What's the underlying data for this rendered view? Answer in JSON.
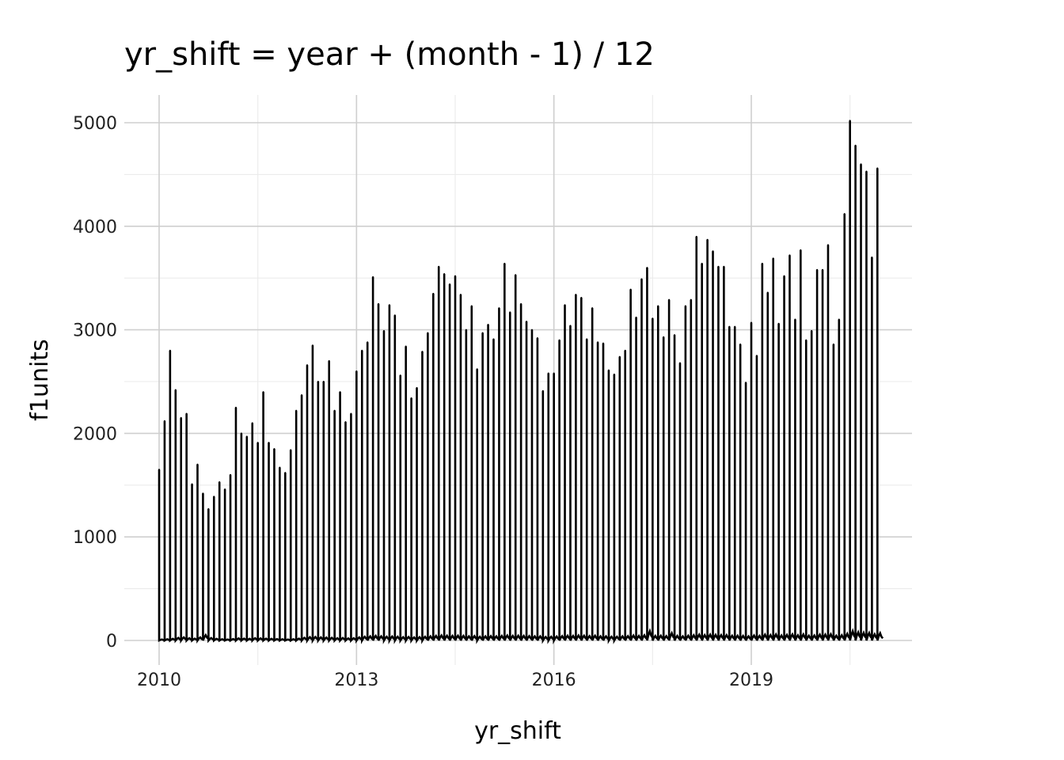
{
  "chart_data": {
    "type": "line",
    "title": "yr_shift = year + (month - 1) / 12",
    "xlabel": "yr_shift",
    "ylabel": "f1units",
    "xlim": [
      2009.9,
      2021.4
    ],
    "ylim": [
      -200,
      5270
    ],
    "x_ticks": [
      2010,
      2013,
      2016,
      2019
    ],
    "x_tick_labels": [
      "2010",
      "2013",
      "2016",
      "2019"
    ],
    "y_ticks": [
      0,
      1000,
      2000,
      3000,
      4000,
      5000
    ],
    "y_tick_labels": [
      "0",
      "1000",
      "2000",
      "3000",
      "4000",
      "5000"
    ],
    "grid": true,
    "legend": "none",
    "line_color": "#000000",
    "series": [
      {
        "month_starts": [
          2010.0,
          2010.0833,
          2010.1667,
          2010.25,
          2010.3333,
          2010.4167,
          2010.5,
          2010.5833,
          2010.6667,
          2010.75,
          2010.8333,
          2010.9167,
          2011.0,
          2011.0833,
          2011.1667,
          2011.25,
          2011.3333,
          2011.4167,
          2011.5,
          2011.5833,
          2011.6667,
          2011.75,
          2011.8333,
          2011.9167,
          2012.0,
          2012.0833,
          2012.1667,
          2012.25,
          2012.3333,
          2012.4167,
          2012.5,
          2012.5833,
          2012.6667,
          2012.75,
          2012.8333,
          2012.9167,
          2013.0,
          2013.0833,
          2013.1667,
          2013.25,
          2013.3333,
          2013.4167,
          2013.5,
          2013.5833,
          2013.6667,
          2013.75,
          2013.8333,
          2013.9167,
          2014.0,
          2014.0833,
          2014.1667,
          2014.25,
          2014.3333,
          2014.4167,
          2014.5,
          2014.5833,
          2014.6667,
          2014.75,
          2014.8333,
          2014.9167,
          2015.0,
          2015.0833,
          2015.1667,
          2015.25,
          2015.3333,
          2015.4167,
          2015.5,
          2015.5833,
          2015.6667,
          2015.75,
          2015.8333,
          2015.9167,
          2016.0,
          2016.0833,
          2016.1667,
          2016.25,
          2016.3333,
          2016.4167,
          2016.5,
          2016.5833,
          2016.6667,
          2016.75,
          2016.8333,
          2016.9167,
          2017.0,
          2017.0833,
          2017.1667,
          2017.25,
          2017.3333,
          2017.4167,
          2017.5,
          2017.5833,
          2017.6667,
          2017.75,
          2017.8333,
          2017.9167,
          2018.0,
          2018.0833,
          2018.1667,
          2018.25,
          2018.3333,
          2018.4167,
          2018.5,
          2018.5833,
          2018.6667,
          2018.75,
          2018.8333,
          2018.9167,
          2019.0,
          2019.0833,
          2019.1667,
          2019.25,
          2019.3333,
          2019.4167,
          2019.5,
          2019.5833,
          2019.6667,
          2019.75,
          2019.8333,
          2019.9167,
          2020.0,
          2020.0833,
          2020.1667,
          2020.25,
          2020.3333,
          2020.4167,
          2020.5,
          2020.5833,
          2020.6667,
          2020.75,
          2020.8333,
          2020.9167
        ],
        "monthly_peak_values": [
          1650,
          2120,
          2800,
          2420,
          2150,
          2190,
          1510,
          1700,
          1420,
          1270,
          1390,
          1530,
          1460,
          1600,
          2250,
          2000,
          1970,
          2100,
          1910,
          2400,
          1910,
          1850,
          1670,
          1620,
          1840,
          2220,
          2370,
          2660,
          2850,
          2500,
          2500,
          2700,
          2220,
          2400,
          2110,
          2190,
          2600,
          2800,
          2880,
          3510,
          3250,
          2990,
          3240,
          3140,
          2560,
          2840,
          2340,
          2440,
          2790,
          2970,
          3350,
          3610,
          3540,
          3440,
          3520,
          3340,
          3000,
          3230,
          2620,
          2970,
          3050,
          2910,
          3210,
          3640,
          3170,
          3530,
          3250,
          3080,
          3000,
          2920,
          2410,
          2580,
          2580,
          2900,
          3240,
          3040,
          3340,
          3310,
          2910,
          3210,
          2880,
          2870,
          2610,
          2570,
          2740,
          2800,
          3390,
          3120,
          3490,
          3600,
          3110,
          3230,
          2930,
          3290,
          2950,
          2680,
          3230,
          3290,
          3900,
          3640,
          3870,
          3760,
          3610,
          3610,
          3030,
          3030,
          2860,
          2490,
          3070,
          2750,
          3640,
          3360,
          3690,
          3060,
          3520,
          3720,
          3100,
          3770,
          2900,
          2990,
          3580,
          3580,
          3820,
          2860,
          3100,
          4120,
          5020,
          4780,
          4600,
          4530,
          3700,
          4560
        ],
        "monthly_trough_values": [
          10,
          12,
          16,
          25,
          30,
          22,
          18,
          30,
          52,
          24,
          16,
          12,
          10,
          14,
          20,
          18,
          16,
          22,
          20,
          18,
          16,
          14,
          12,
          10,
          12,
          18,
          26,
          32,
          34,
          30,
          28,
          26,
          22,
          24,
          20,
          22,
          30,
          36,
          40,
          44,
          40,
          36,
          38,
          36,
          32,
          34,
          30,
          32,
          36,
          40,
          44,
          48,
          46,
          44,
          46,
          44,
          40,
          42,
          36,
          40,
          42,
          40,
          44,
          48,
          44,
          46,
          44,
          42,
          40,
          40,
          34,
          36,
          38,
          42,
          46,
          44,
          48,
          46,
          42,
          46,
          40,
          40,
          36,
          36,
          40,
          42,
          48,
          44,
          50,
          90,
          44,
          46,
          42,
          70,
          44,
          40,
          46,
          50,
          56,
          52,
          56,
          54,
          52,
          52,
          46,
          46,
          44,
          40,
          48,
          44,
          56,
          52,
          58,
          48,
          54,
          58,
          50,
          58,
          46,
          48,
          56,
          56,
          60,
          46,
          50,
          64,
          90,
          78,
          74,
          72,
          60,
          70
        ]
      }
    ]
  }
}
